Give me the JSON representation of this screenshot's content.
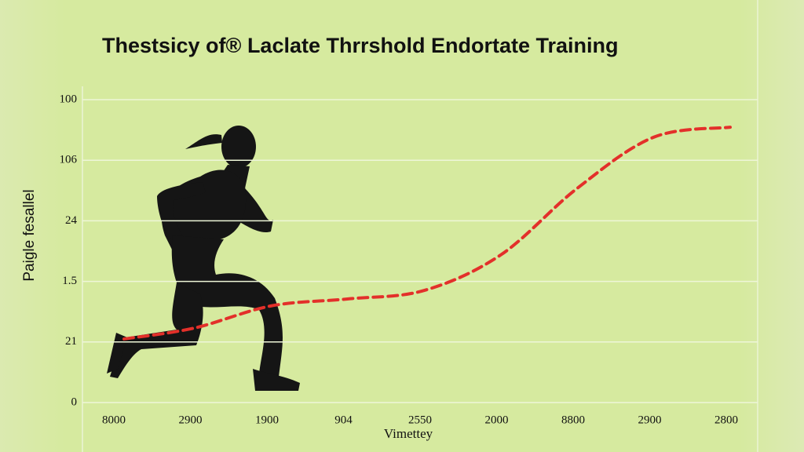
{
  "chart_data": {
    "type": "line",
    "title": "Thestsicy of® Laclate Thrrshold Endortate Training",
    "ylabel": "Paigle fesallel",
    "xlabel": "Vimettey",
    "categories": [
      "8000",
      "2900",
      "1900",
      "904",
      "2550",
      "2000",
      "8800",
      "2900",
      "2800"
    ],
    "values": [
      21,
      24.6,
      31.9,
      34.2,
      37,
      48.7,
      70.7,
      87.6,
      90.9
    ],
    "color": "#e3302a",
    "line_style": "dashed",
    "ylim": [
      0,
      100
    ],
    "yticks": [
      0,
      {
        "value": 20,
        "label": "21"
      },
      {
        "value": 40,
        "label": "1.5"
      },
      {
        "value": 60,
        "label": "24"
      },
      {
        "value": 80,
        "label": "106"
      },
      100
    ],
    "grid": true
  }
}
